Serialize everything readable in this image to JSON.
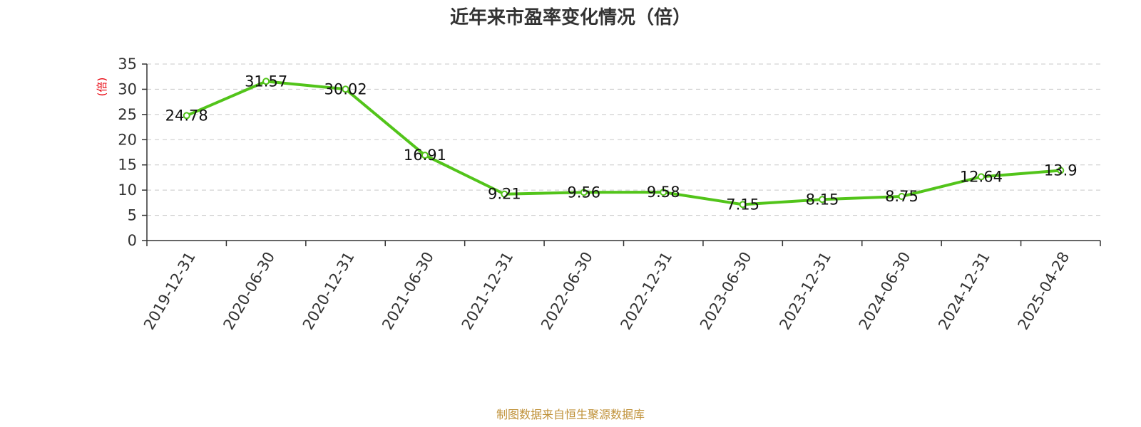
{
  "chart_data": {
    "type": "line",
    "title": "近年来市盈率变化情况（倍）",
    "ylabel": "(倍)",
    "xlabel": "",
    "categories": [
      "2019-12-31",
      "2020-06-30",
      "2020-12-31",
      "2021-06-30",
      "2021-12-31",
      "2022-06-30",
      "2022-12-31",
      "2023-06-30",
      "2023-12-31",
      "2024-06-30",
      "2024-12-31",
      "2025-04-28"
    ],
    "values": [
      24.78,
      31.57,
      30.02,
      16.91,
      9.21,
      9.56,
      9.58,
      7.15,
      8.15,
      8.75,
      12.64,
      13.9
    ],
    "value_labels": [
      "24.78",
      "31.57",
      "30.02",
      "16.91",
      "9.21",
      "9.56",
      "9.58",
      "7.15",
      "8.15",
      "8.75",
      "12.64",
      "13.9"
    ],
    "yticks": [
      0,
      5,
      10,
      15,
      20,
      25,
      30,
      35
    ],
    "ylim": [
      0,
      35
    ],
    "grid": true,
    "legend": "none",
    "line_color": "#52c41a",
    "ylabel_color": "#e8000b"
  },
  "footer": {
    "source": "制图数据来自恒生聚源数据库",
    "color": "#c0923a"
  }
}
